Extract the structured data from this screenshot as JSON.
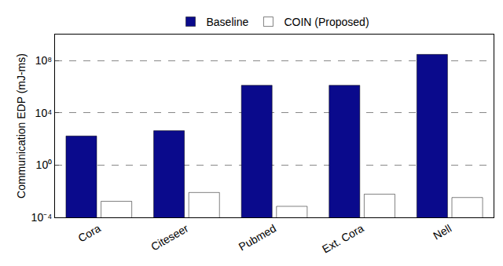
{
  "chart_data": {
    "type": "bar",
    "y_label": "Communication EDP (mJ-ms)",
    "categories": [
      "Cora",
      "Citeseer",
      "Pubmed",
      "Ext. Cora",
      "Nell"
    ],
    "series": [
      {
        "name": "Baseline",
        "color": "#0a0a8c",
        "values": [
          170,
          430,
          1300000,
          1300000,
          300000000
        ]
      },
      {
        "name": "COIN (Proposed)",
        "color": "#c8786e",
        "values": [
          0.0017,
          0.008,
          0.0007,
          0.006,
          0.0033
        ]
      }
    ],
    "log": "y",
    "ylim": [
      0.0001,
      10000000000
    ],
    "yticks": [
      {
        "value": 0.0001,
        "label": "10⁻⁴"
      },
      {
        "value": 1,
        "label": "10⁰"
      },
      {
        "value": 10000,
        "label": "10⁴"
      },
      {
        "value": 100000000,
        "label": "10⁸"
      }
    ],
    "grid": true,
    "legend": "top"
  }
}
